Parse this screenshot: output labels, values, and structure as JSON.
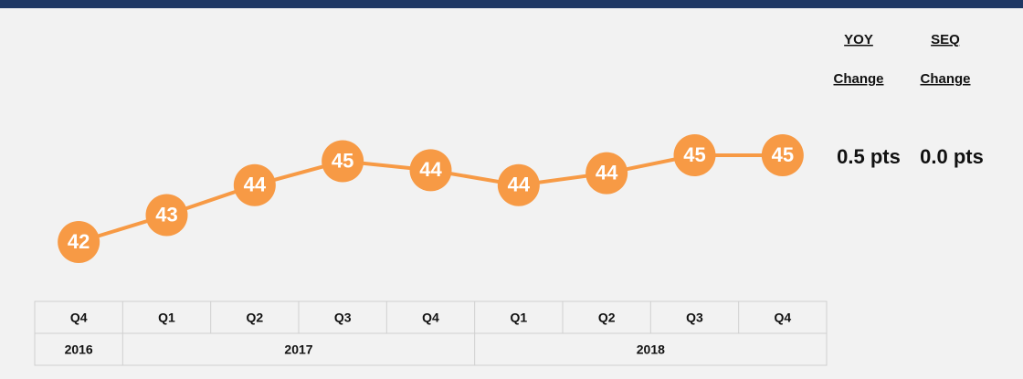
{
  "chart_data": {
    "type": "line",
    "categories": [
      "Q4",
      "Q1",
      "Q2",
      "Q3",
      "Q4",
      "Q1",
      "Q2",
      "Q3",
      "Q4"
    ],
    "years": [
      "2016",
      "2017",
      "2017",
      "2017",
      "2017",
      "2018",
      "2018",
      "2018",
      "2018"
    ],
    "values": [
      42.0,
      42.9,
      43.9,
      44.7,
      44.4,
      43.9,
      44.3,
      44.9,
      44.9
    ],
    "value_labels": [
      "42",
      "43",
      "44",
      "45",
      "44",
      "44",
      "44",
      "45",
      "45"
    ],
    "color": "#f79a45",
    "summary": {
      "yoy_header": [
        "YOY",
        "Change"
      ],
      "seq_header": [
        "SEQ",
        "Change"
      ],
      "yoy_value": "0.5 pts",
      "seq_value": "0.0 pts"
    }
  }
}
